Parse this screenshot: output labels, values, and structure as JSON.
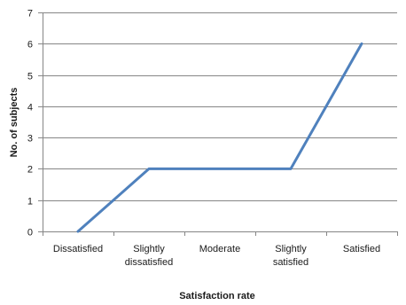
{
  "chart_data": {
    "type": "line",
    "categories": [
      "Dissatisfied",
      "Slightly dissatisfied",
      "Moderate",
      "Slightly satisfied",
      "Satisfied"
    ],
    "category_lines": [
      [
        "Dissatisfied"
      ],
      [
        "Slightly",
        "dissatisfied"
      ],
      [
        "Moderate"
      ],
      [
        "Slightly",
        "satisfied"
      ],
      [
        "Satisfied"
      ]
    ],
    "series": [
      {
        "values": [
          0,
          2,
          2,
          2,
          6
        ]
      }
    ],
    "xlabel": "Satisfaction rate",
    "ylabel": "No. of subjects",
    "ylim": [
      0,
      7
    ],
    "yticks": [
      0,
      1,
      2,
      3,
      4,
      5,
      6,
      7
    ],
    "grid": true,
    "line_color": "#4f81bd",
    "grid_color": "#868686"
  }
}
